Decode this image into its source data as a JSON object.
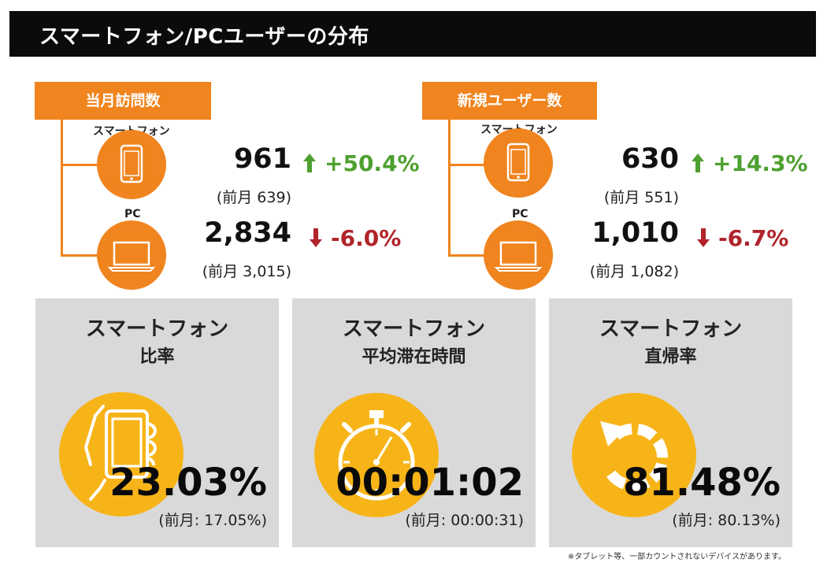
{
  "title": "スマートフォン/PCユーザーの分布",
  "sections": [
    {
      "label": "当月訪問数",
      "rows": [
        {
          "device": "スマートフォン",
          "value": "961",
          "delta": "+50.4%",
          "direction": "up",
          "prev": "(前月 639)"
        },
        {
          "device": "PC",
          "value": "2,834",
          "delta": "-6.0%",
          "direction": "down",
          "prev": "(前月 3,015)"
        }
      ]
    },
    {
      "label": "新規ユーザー数",
      "rows": [
        {
          "device": "スマートフォン",
          "value": "630",
          "delta": "+14.3%",
          "direction": "up",
          "prev": "(前月 551)"
        },
        {
          "device": "PC",
          "value": "1,010",
          "delta": "-6.7%",
          "direction": "down",
          "prev": "(前月 1,082)"
        }
      ]
    }
  ],
  "cards": [
    {
      "line1": "スマートフォン",
      "line2": "比率",
      "icon": "hand-phone-icon",
      "value": "23.03%",
      "prev": "(前月: 17.05%)"
    },
    {
      "line1": "スマートフォン",
      "line2": "平均滞在時間",
      "icon": "stopwatch-icon",
      "value": "00:01:02",
      "prev": "(前月: 00:00:31)"
    },
    {
      "line1": "スマートフォン",
      "line2": "直帰率",
      "icon": "return-arrow-icon",
      "value": "81.48%",
      "prev": "(前月: 80.13%)"
    }
  ],
  "footnote": "※タブレット等、一部カウントされないデバイスがあります。",
  "colors": {
    "orange": "#f0841e",
    "yellow": "#f7b419",
    "up": "#4ea02f",
    "down": "#b0242a",
    "card": "#d9d9d9"
  }
}
